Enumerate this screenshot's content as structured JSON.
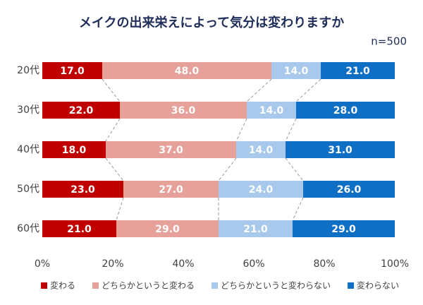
{
  "chart_data": {
    "type": "stacked-bar-horizontal",
    "title": "メイクの出来栄えによって気分は変わりますか",
    "subtitle": "n=500",
    "categories": [
      "20代",
      "30代",
      "40代",
      "50代",
      "60代"
    ],
    "series": [
      {
        "name": "変わる",
        "color": "#c00000",
        "values": [
          17,
          22,
          18,
          23,
          21
        ],
        "value_labels": [
          "17.0",
          "22.0",
          "18.0",
          "23.0",
          "21.0"
        ]
      },
      {
        "name": "どちらかというと変わる",
        "color": "#e6a19b",
        "values": [
          48,
          36,
          37,
          27,
          29
        ],
        "value_labels": [
          "48.0",
          "36.0",
          "37.0",
          "27.0",
          "29.0"
        ]
      },
      {
        "name": "どちらかというと変わらない",
        "color": "#a9c9ec",
        "values": [
          14,
          14,
          14,
          24,
          21
        ],
        "value_labels": [
          "14.0",
          "14.0",
          "14.0",
          "24.0",
          "21.0"
        ]
      },
      {
        "name": "変わらない",
        "color": "#0f6fc4",
        "values": [
          21,
          28,
          31,
          26,
          29
        ],
        "value_labels": [
          "21.0",
          "28.0",
          "31.0",
          "26.0",
          "29.0"
        ]
      }
    ],
    "xlim": [
      0,
      100
    ],
    "xticks": [
      {
        "value": 0,
        "label": "0%"
      },
      {
        "value": 20,
        "label": "20%"
      },
      {
        "value": 40,
        "label": "40%"
      },
      {
        "value": 60,
        "label": "60%"
      },
      {
        "value": 80,
        "label": "80%"
      },
      {
        "value": 100,
        "label": "100%"
      }
    ],
    "legend": "bottom"
  }
}
